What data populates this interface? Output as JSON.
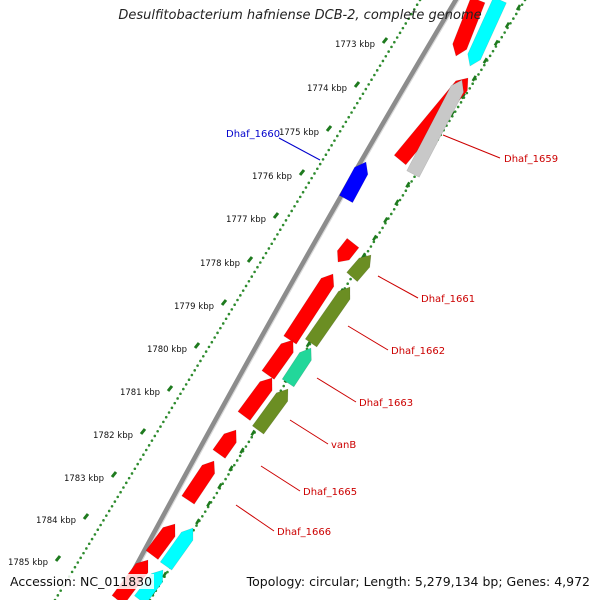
{
  "title": "Desulfitobacterium hafniense DCB-2, complete genome",
  "accession": "Accession: NC_011830",
  "summary": "Topology: circular; Length: 5,279,134 bp; Genes: 4,972",
  "colors": {
    "backbone": "#888888",
    "cds": "#ff0000",
    "trna_like": "#0000ff",
    "cyan": "#00ffff",
    "grey": "#c8c8c8",
    "olive": "#6b8e23",
    "green_tick": "#2e8b2e",
    "label_red": "#cc0000",
    "label_blue": "#0000cc"
  },
  "ticks": [
    {
      "label": "1773 kbp"
    },
    {
      "label": "1774 kbp"
    },
    {
      "label": "1775 kbp"
    },
    {
      "label": "1776 kbp"
    },
    {
      "label": "1777 kbp"
    },
    {
      "label": "1778 kbp"
    },
    {
      "label": "1779 kbp"
    },
    {
      "label": "1780 kbp"
    },
    {
      "label": "1781 kbp"
    },
    {
      "label": "1782 kbp"
    },
    {
      "label": "1783 kbp"
    },
    {
      "label": "1784 kbp"
    },
    {
      "label": "1785 kbp"
    }
  ],
  "gene_labels": [
    {
      "name": "Dhaf_1660",
      "color": "label_blue"
    },
    {
      "name": "Dhaf_1659",
      "color": "label_red"
    },
    {
      "name": "Dhaf_1661",
      "color": "label_red"
    },
    {
      "name": "Dhaf_1662",
      "color": "label_red"
    },
    {
      "name": "Dhaf_1663",
      "color": "label_red"
    },
    {
      "name": "vanB",
      "color": "label_red"
    },
    {
      "name": "Dhaf_1665",
      "color": "label_red"
    },
    {
      "name": "Dhaf_1666",
      "color": "label_red"
    }
  ]
}
